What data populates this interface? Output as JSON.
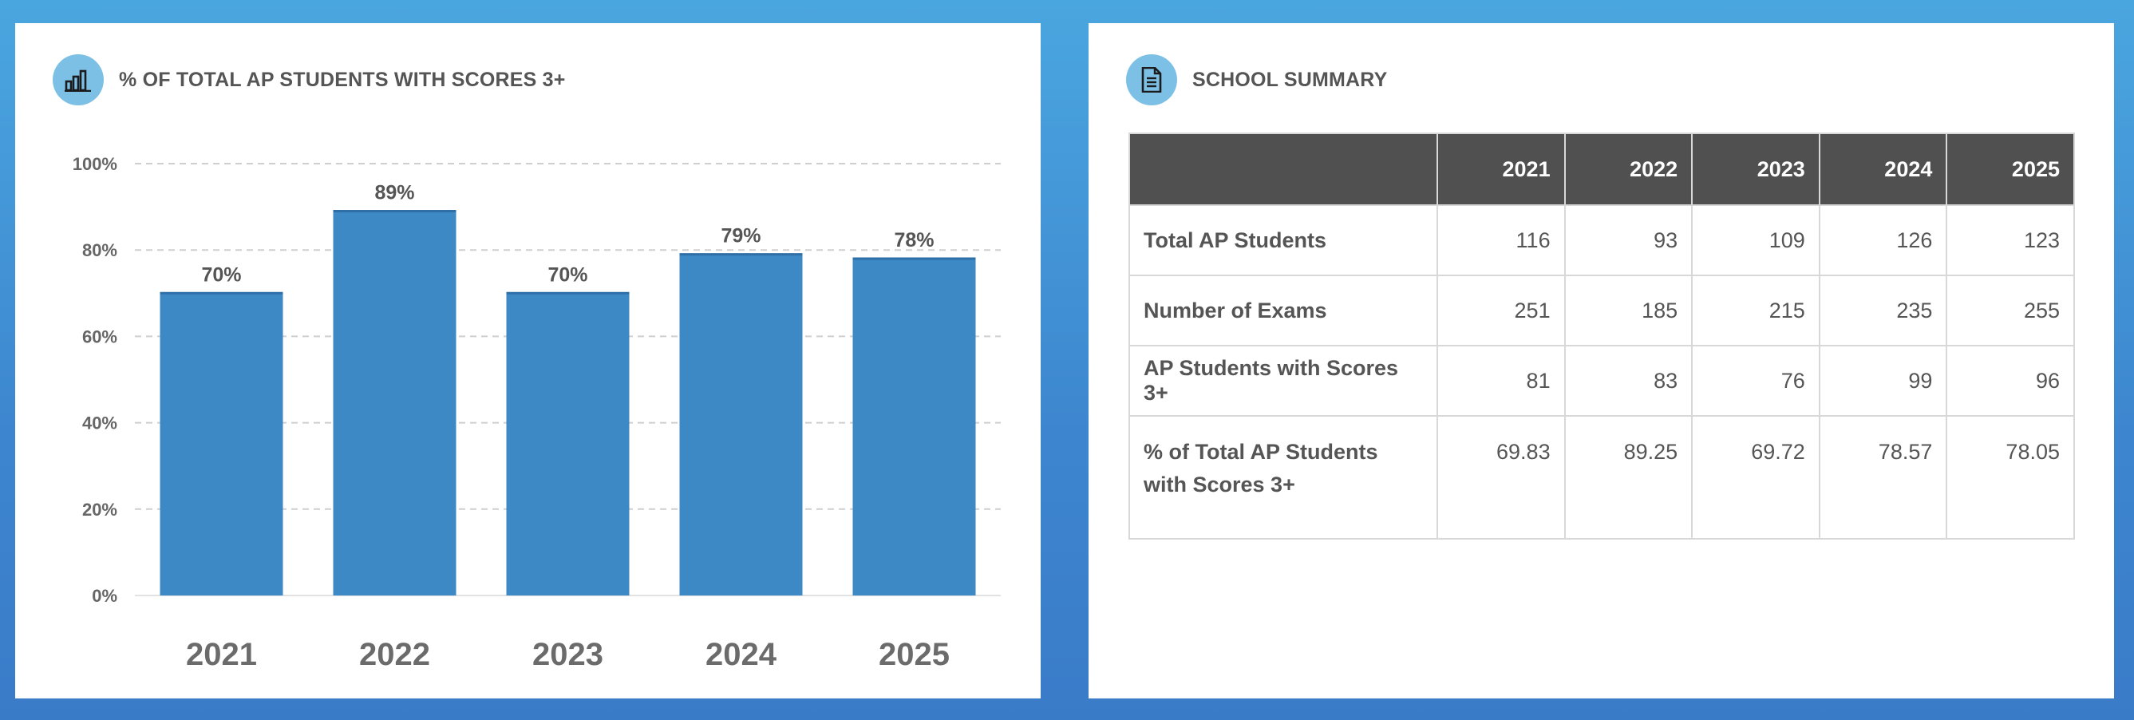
{
  "left_panel": {
    "title": "% OF TOTAL AP STUDENTS WITH SCORES 3+",
    "icon": "bar-chart-icon"
  },
  "right_panel": {
    "title": "SCHOOL SUMMARY",
    "icon": "document-icon"
  },
  "colors": {
    "bar": "#3c89c6",
    "header_bg": "#505050",
    "icon_circle": "#7cc0e6"
  },
  "chart_data": {
    "type": "bar",
    "categories": [
      "2021",
      "2022",
      "2023",
      "2024",
      "2025"
    ],
    "values": [
      70,
      89,
      70,
      79,
      78
    ],
    "data_labels": [
      "70%",
      "89%",
      "70%",
      "79%",
      "78%"
    ],
    "yticks": [
      "0%",
      "20%",
      "40%",
      "60%",
      "80%",
      "100%"
    ],
    "ytick_values": [
      0,
      20,
      40,
      60,
      80,
      100
    ],
    "ylim": [
      0,
      100
    ],
    "grid": true,
    "title": "% OF TOTAL AP STUDENTS WITH SCORES 3+",
    "xlabel": "",
    "ylabel": ""
  },
  "table": {
    "columns": [
      "",
      "2021",
      "2022",
      "2023",
      "2024",
      "2025"
    ],
    "rows": [
      {
        "label": "Total AP Students",
        "values": [
          "116",
          "93",
          "109",
          "126",
          "123"
        ]
      },
      {
        "label": "Number of Exams",
        "values": [
          "251",
          "185",
          "215",
          "235",
          "255"
        ]
      },
      {
        "label": "AP Students with Scores 3+",
        "values": [
          "81",
          "83",
          "76",
          "99",
          "96"
        ]
      },
      {
        "label": "% of Total AP Students with Scores 3+",
        "values": [
          "69.83",
          "89.25",
          "69.72",
          "78.57",
          "78.05"
        ]
      }
    ]
  }
}
